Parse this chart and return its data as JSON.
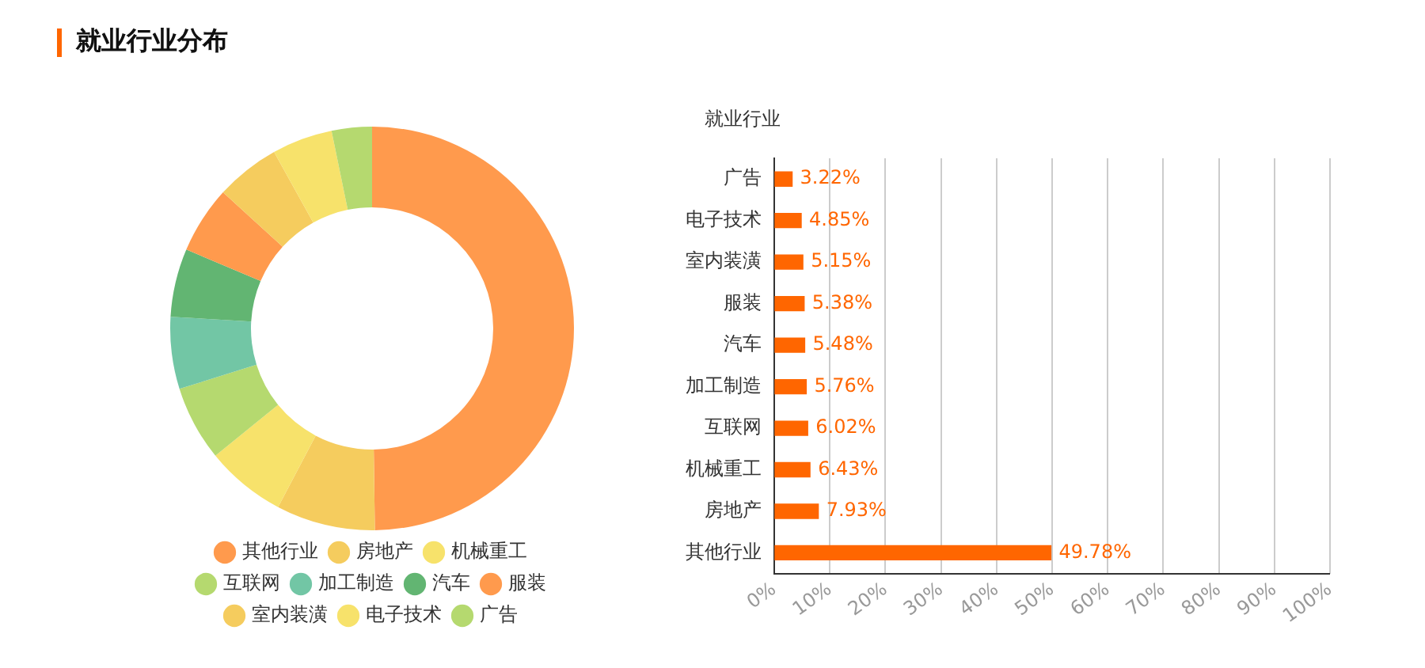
{
  "chart_data": [
    {
      "type": "donut",
      "title": "就业行业分布",
      "legend": "bottom",
      "categories": [
        "其他行业",
        "房地产",
        "机械重工",
        "互联网",
        "加工制造",
        "汽车",
        "服装",
        "室内装潢",
        "电子技术",
        "广告"
      ],
      "values": [
        49.78,
        7.93,
        6.43,
        6.02,
        5.76,
        5.48,
        5.38,
        5.15,
        4.85,
        3.22
      ],
      "colors": [
        "#ff9a4d",
        "#f5cc5e",
        "#f7e26b",
        "#b5d96f",
        "#72c6a5",
        "#62b572",
        "#ff9a4d",
        "#f5cc5e",
        "#f7e26b",
        "#b5d96f"
      ]
    },
    {
      "type": "bar",
      "orientation": "horizontal",
      "ylabel": "就业行业",
      "grid": "x",
      "categories": [
        "广告",
        "电子技术",
        "室内装潢",
        "服装",
        "汽车",
        "加工制造",
        "互联网",
        "机械重工",
        "房地产",
        "其他行业"
      ],
      "values": [
        3.22,
        4.85,
        5.15,
        5.38,
        5.48,
        5.76,
        6.02,
        6.43,
        7.93,
        49.78
      ],
      "value_labels": [
        "3.22%",
        "4.85%",
        "5.15%",
        "5.38%",
        "5.48%",
        "5.76%",
        "6.02%",
        "6.43%",
        "7.93%",
        "49.78%"
      ],
      "color": "#ff6600",
      "xlim": [
        0,
        100
      ],
      "xticks": [
        {
          "value": 0,
          "label": "0%"
        },
        {
          "value": 10,
          "label": "10%"
        },
        {
          "value": 20,
          "label": "20%"
        },
        {
          "value": 30,
          "label": "30%"
        },
        {
          "value": 40,
          "label": "40%"
        },
        {
          "value": 50,
          "label": "50%"
        },
        {
          "value": 60,
          "label": "60%"
        },
        {
          "value": 70,
          "label": "70%"
        },
        {
          "value": 80,
          "label": "80%"
        },
        {
          "value": 90,
          "label": "90%"
        },
        {
          "value": 100,
          "label": "100%"
        }
      ]
    }
  ]
}
